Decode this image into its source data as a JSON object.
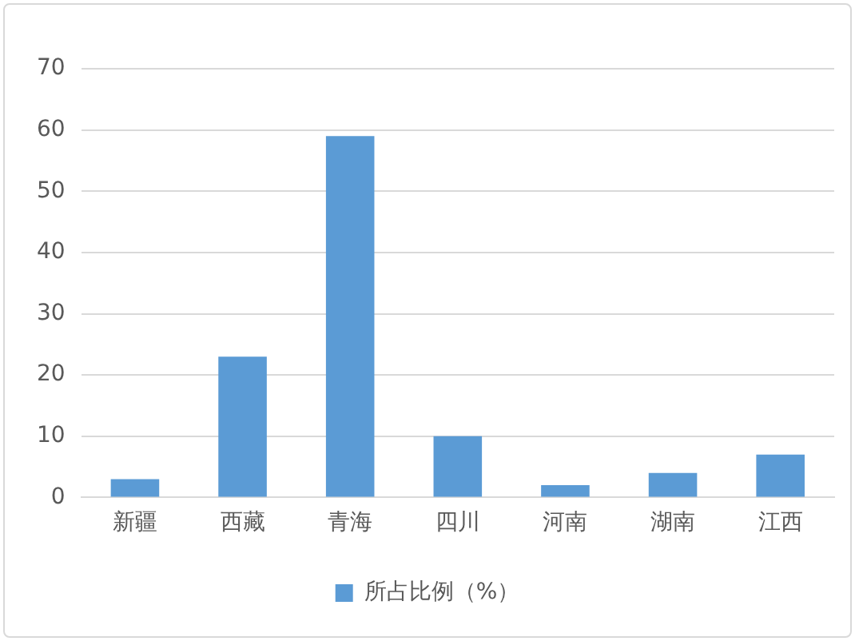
{
  "chart_data": {
    "type": "bar",
    "categories": [
      "新疆",
      "西藏",
      "青海",
      "四川",
      "河南",
      "湖南",
      "江西"
    ],
    "series": [
      {
        "name": "所占比例（%）",
        "color": "#5b9bd5",
        "values": [
          3,
          23,
          59,
          10,
          2,
          4,
          7
        ]
      }
    ],
    "ylim": [
      0,
      70
    ],
    "yticks": [
      0,
      10,
      20,
      30,
      40,
      50,
      60,
      70
    ],
    "grid": "y",
    "legend": "bottom"
  }
}
